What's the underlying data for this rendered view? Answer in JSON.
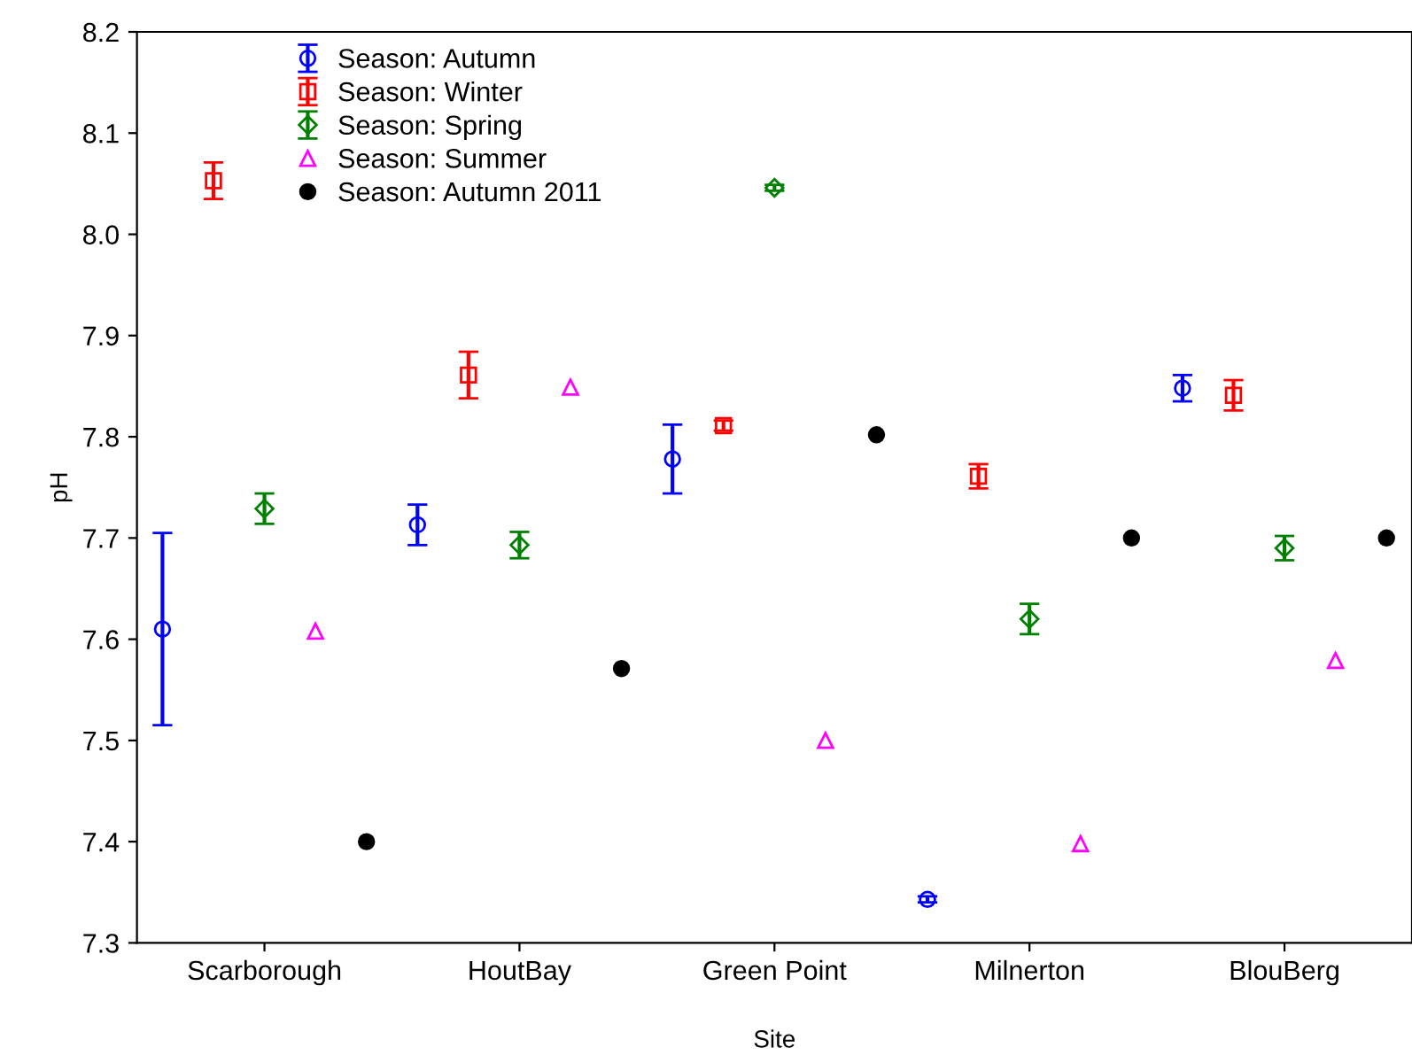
{
  "chart_data": {
    "type": "scatter",
    "xlabel": "Site",
    "ylabel": "pH",
    "categories": [
      "Scarborough",
      "HoutBay",
      "Green Point",
      "Milnerton",
      "BlouBerg"
    ],
    "ylim": [
      7.3,
      8.2
    ],
    "yticks": [
      7.3,
      7.4,
      7.5,
      7.6,
      7.7,
      7.8,
      7.9,
      {
        "value": 8,
        "label": "8.0"
      },
      8.1,
      8.2
    ],
    "legend": "top left",
    "grid": false,
    "series": [
      {
        "name": "Season: Autumn",
        "color": "#0000ff",
        "marker": "circle",
        "values": [
          7.61,
          7.713,
          7.778,
          7.343,
          7.848
        ],
        "errors": [
          0.095,
          0.02,
          0.034,
          0.003,
          0.013
        ]
      },
      {
        "name": "Season: Winter",
        "color": "#ff0000",
        "marker": "square",
        "values": [
          8.053,
          7.861,
          7.811,
          7.761,
          7.841
        ],
        "errors": [
          0.018,
          0.023,
          0.005,
          0.012,
          0.015
        ]
      },
      {
        "name": "Season: Spring",
        "color": "#008000",
        "marker": "diamond",
        "values": [
          7.729,
          7.693,
          8.046,
          7.62,
          7.69
        ],
        "errors": [
          0.015,
          0.013,
          0.003,
          0.015,
          0.012
        ]
      },
      {
        "name": "Season: Summer",
        "color": "#ff00ff",
        "marker": "triangle",
        "values": [
          7.608,
          7.849,
          7.5,
          7.398,
          7.579
        ]
      },
      {
        "name": "Season: Autumn 2011",
        "color": "#000000",
        "marker": "circle",
        "values": [
          7.4,
          7.571,
          7.802,
          7.7,
          7.7
        ]
      }
    ]
  }
}
